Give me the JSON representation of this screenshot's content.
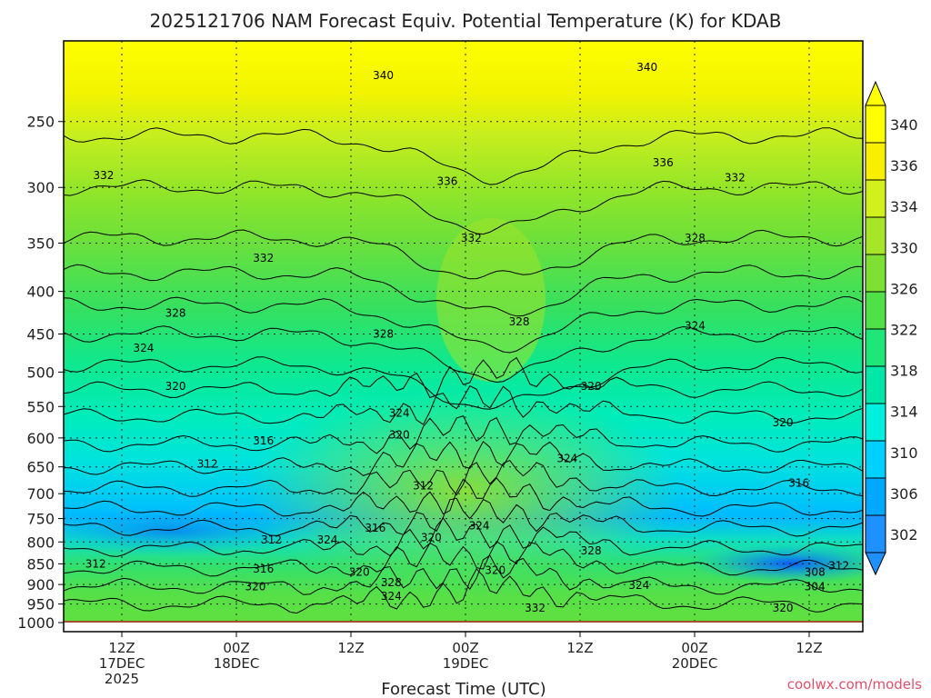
{
  "chart_data": {
    "type": "heatmap",
    "title": "2025121706 NAM Forecast Equiv. Potential Temperature (K) for KDAB",
    "xlabel": "Forecast Time (UTC)",
    "ylabel": "",
    "credit": "coolwx.com/models",
    "y_scale": "log-pressure",
    "y_range_hpa": [
      1000,
      200
    ],
    "y_ticks": [
      "250",
      "300",
      "350",
      "400",
      "450",
      "500",
      "550",
      "600",
      "650",
      "700",
      "750",
      "800",
      "850",
      "900",
      "950",
      "1000"
    ],
    "x_ticks": [
      {
        "lines": [
          "12Z",
          "17DEC",
          "2025"
        ]
      },
      {
        "lines": [
          "00Z",
          "18DEC"
        ]
      },
      {
        "lines": [
          "12Z"
        ]
      },
      {
        "lines": [
          "00Z",
          "19DEC"
        ]
      },
      {
        "lines": [
          "12Z"
        ]
      },
      {
        "lines": [
          "00Z",
          "20DEC"
        ]
      },
      {
        "lines": [
          "12Z"
        ]
      }
    ],
    "colorbar": {
      "labels": [
        "302",
        "306",
        "310",
        "314",
        "318",
        "322",
        "326",
        "330",
        "334",
        "336",
        "340"
      ],
      "colors": [
        "#1e90ff",
        "#00a8ff",
        "#00d0ff",
        "#00f0e0",
        "#00e8a8",
        "#1ee678",
        "#50e048",
        "#7ee032",
        "#a6e628",
        "#d2f01c",
        "#f8f000",
        "#ffff00"
      ]
    },
    "contour_labels": [
      {
        "t": 0.04,
        "p": 850,
        "text": "312"
      },
      {
        "t": 0.05,
        "p": 290,
        "text": "332"
      },
      {
        "t": 0.14,
        "p": 425,
        "text": "328"
      },
      {
        "t": 0.1,
        "p": 468,
        "text": "324"
      },
      {
        "t": 0.14,
        "p": 520,
        "text": "320"
      },
      {
        "t": 0.18,
        "p": 645,
        "text": "312"
      },
      {
        "t": 0.24,
        "p": 905,
        "text": "320"
      },
      {
        "t": 0.25,
        "p": 365,
        "text": "332"
      },
      {
        "t": 0.26,
        "p": 795,
        "text": "312"
      },
      {
        "t": 0.25,
        "p": 605,
        "text": "316"
      },
      {
        "t": 0.25,
        "p": 862,
        "text": "316"
      },
      {
        "t": 0.33,
        "p": 795,
        "text": "324"
      },
      {
        "t": 0.4,
        "p": 220,
        "text": "340"
      },
      {
        "t": 0.4,
        "p": 450,
        "text": "328"
      },
      {
        "t": 0.37,
        "p": 870,
        "text": "320"
      },
      {
        "t": 0.39,
        "p": 770,
        "text": "316"
      },
      {
        "t": 0.41,
        "p": 895,
        "text": "328"
      },
      {
        "t": 0.41,
        "p": 930,
        "text": "324"
      },
      {
        "t": 0.42,
        "p": 560,
        "text": "324"
      },
      {
        "t": 0.42,
        "p": 595,
        "text": "320"
      },
      {
        "t": 0.45,
        "p": 685,
        "text": "312"
      },
      {
        "t": 0.46,
        "p": 790,
        "text": "320"
      },
      {
        "t": 0.48,
        "p": 295,
        "text": "336"
      },
      {
        "t": 0.51,
        "p": 345,
        "text": "332"
      },
      {
        "t": 0.52,
        "p": 765,
        "text": "324"
      },
      {
        "t": 0.54,
        "p": 865,
        "text": "320"
      },
      {
        "t": 0.57,
        "p": 435,
        "text": "328"
      },
      {
        "t": 0.59,
        "p": 960,
        "text": "332"
      },
      {
        "t": 0.63,
        "p": 635,
        "text": "324"
      },
      {
        "t": 0.66,
        "p": 520,
        "text": "320"
      },
      {
        "t": 0.66,
        "p": 820,
        "text": "328"
      },
      {
        "t": 0.72,
        "p": 902,
        "text": "324"
      },
      {
        "t": 0.73,
        "p": 215,
        "text": "340"
      },
      {
        "t": 0.75,
        "p": 280,
        "text": "336"
      },
      {
        "t": 0.79,
        "p": 345,
        "text": "328"
      },
      {
        "t": 0.79,
        "p": 440,
        "text": "324"
      },
      {
        "t": 0.84,
        "p": 292,
        "text": "332"
      },
      {
        "t": 0.9,
        "p": 575,
        "text": "320"
      },
      {
        "t": 0.92,
        "p": 680,
        "text": "316"
      },
      {
        "t": 0.94,
        "p": 870,
        "text": "308"
      },
      {
        "t": 0.94,
        "p": 905,
        "text": "304"
      },
      {
        "t": 0.9,
        "p": 960,
        "text": "320"
      },
      {
        "t": 0.97,
        "p": 855,
        "text": "312"
      }
    ]
  }
}
